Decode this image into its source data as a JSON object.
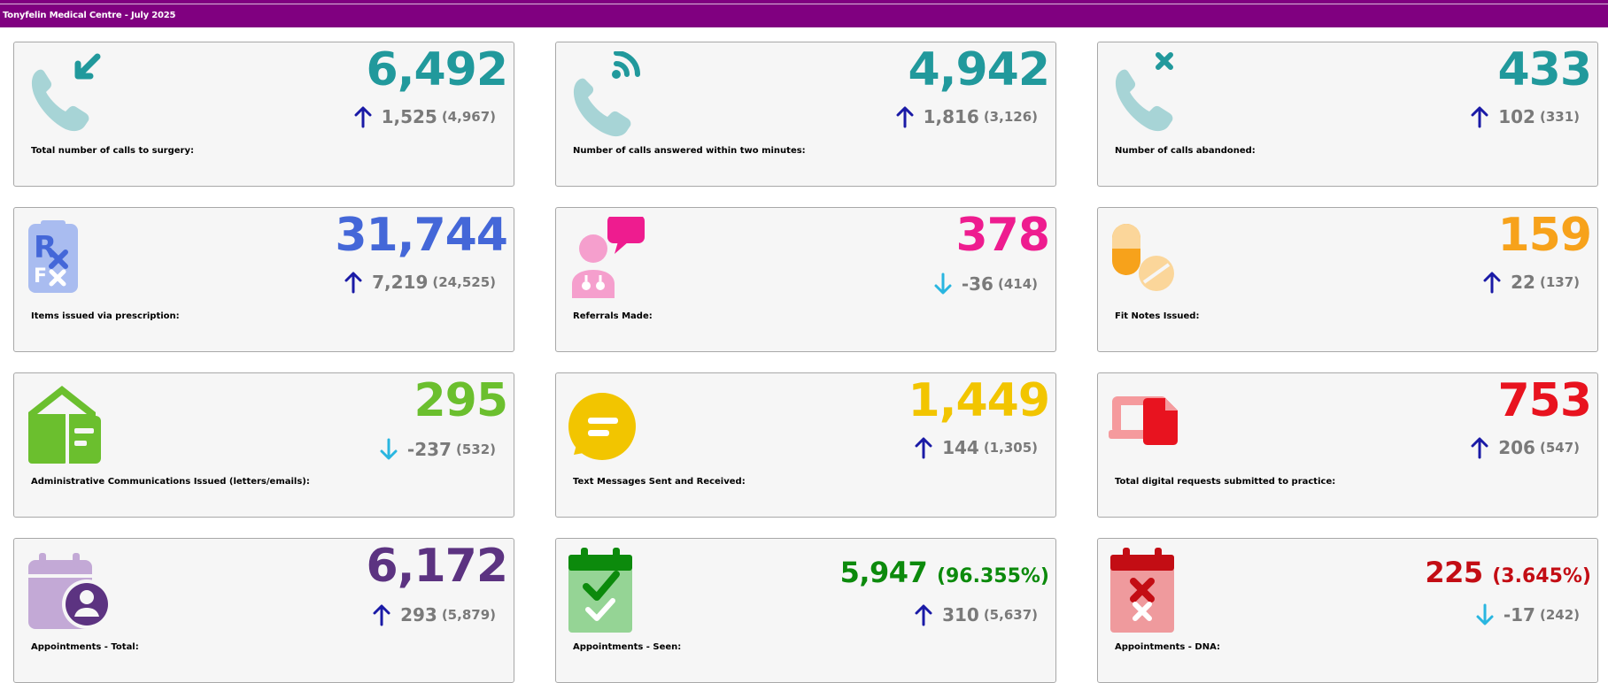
{
  "header": {
    "title": "Tonyfelin Medical Centre - July 2025"
  },
  "cards": [
    {
      "label": "Total number of calls to surgery:",
      "value": "6,492",
      "pct": "",
      "delta": "1,525",
      "prev": "(4,967)",
      "trend": "up",
      "color": "#21999c",
      "icon": "phone-incoming-icon"
    },
    {
      "label": "Number of calls answered within two minutes:",
      "value": "4,942",
      "pct": "",
      "delta": "1,816",
      "prev": "(3,126)",
      "trend": "up",
      "color": "#21999c",
      "icon": "phone-ringing-icon"
    },
    {
      "label": "Number of calls abandoned:",
      "value": "433",
      "pct": "",
      "delta": "102",
      "prev": "(331)",
      "trend": "up",
      "color": "#21999c",
      "icon": "phone-missed-icon"
    },
    {
      "label": "Items issued via prescription:",
      "value": "31,744",
      "pct": "",
      "delta": "7,219",
      "prev": "(24,525)",
      "trend": "up",
      "color": "#4467d8",
      "icon": "prescription-icon"
    },
    {
      "label": "Referrals Made:",
      "value": "378",
      "pct": "",
      "delta": "-36",
      "prev": "(414)",
      "trend": "down",
      "color": "#ee1c8f",
      "icon": "doctor-chat-icon"
    },
    {
      "label": "Fit Notes Issued:",
      "value": "159",
      "pct": "",
      "delta": "22",
      "prev": "(137)",
      "trend": "up",
      "color": "#f7a21b",
      "icon": "pills-icon"
    },
    {
      "label": "Administrative Communications Issued (letters/emails):",
      "value": "295",
      "pct": "",
      "delta": "-237",
      "prev": "(532)",
      "trend": "down",
      "color": "#6bbf2e",
      "icon": "mail-house-icon"
    },
    {
      "label": "Text Messages Sent and Received:",
      "value": "1,449",
      "pct": "",
      "delta": "144",
      "prev": "(1,305)",
      "trend": "up",
      "color": "#f2c500",
      "icon": "chat-bubble-icon"
    },
    {
      "label": "Total digital requests submitted to practice:",
      "value": "753",
      "pct": "",
      "delta": "206",
      "prev": "(547)",
      "trend": "up",
      "color": "#e8131f",
      "icon": "digital-request-icon"
    },
    {
      "label": "Appointments - Total:",
      "value": "6,172",
      "pct": "",
      "delta": "293",
      "prev": "(5,879)",
      "trend": "up",
      "color": "#5c3381",
      "icon": "calendar-person-icon"
    },
    {
      "label": "Appointments - Seen:",
      "value": "5,947",
      "pct": "(96.355%)",
      "delta": "310",
      "prev": "(5,637)",
      "trend": "up",
      "color": "#0c8a0c",
      "icon": "calendar-check-icon"
    },
    {
      "label": "Appointments - DNA:",
      "value": "225",
      "pct": "(3.645%)",
      "delta": "-17",
      "prev": "(242)",
      "trend": "down",
      "color": "#c30d14",
      "icon": "calendar-cross-icon"
    }
  ],
  "colors": {
    "header_bg": "#800080",
    "arrow_up": "#1a1aa6",
    "arrow_down": "#29b6e0",
    "delta_text": "#7a7a7a"
  }
}
